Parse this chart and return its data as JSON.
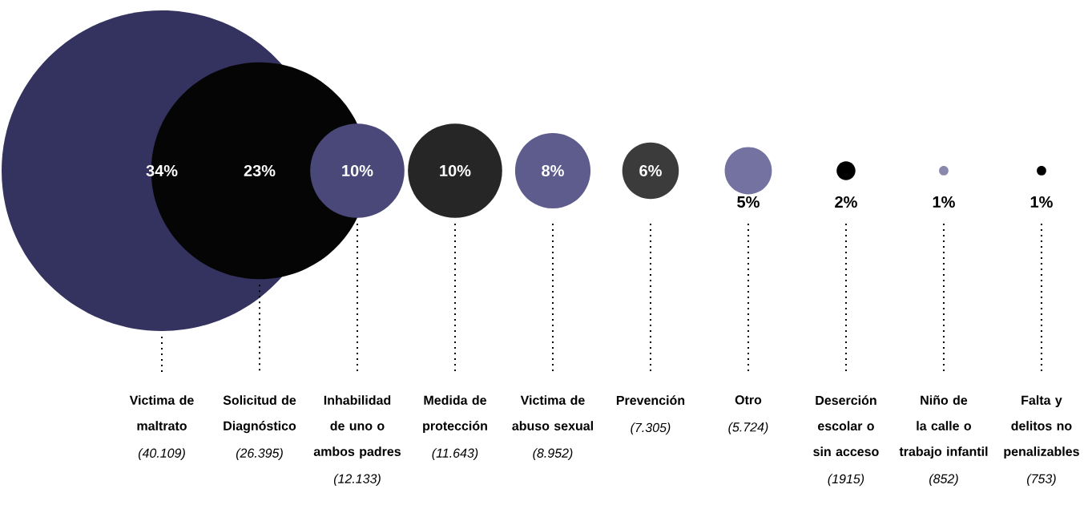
{
  "chart_data": {
    "type": "other",
    "categories": [
      "Victima de maltrato",
      "Solicitud de Diagnóstico",
      "Inhabilidad de uno o ambos padres",
      "Medida de protección",
      "Victima de abuso sexual",
      "Prevención",
      "Otro",
      "Deserción escolar o sin acceso",
      "Niño de la calle o trabajo infantil",
      "Falta y delitos no penalizables"
    ],
    "values": [
      34,
      23,
      10,
      10,
      8,
      6,
      5,
      2,
      1,
      1
    ],
    "value_labels": [
      "34%",
      "23%",
      "10%",
      "10%",
      "8%",
      "6%",
      "5%",
      "2%",
      "1%",
      "1%"
    ],
    "colors": [
      "#34325f",
      "#050505",
      "#4a4879",
      "#262626",
      "#5e5c8c",
      "#3b3b3b",
      "#7472a0",
      "#000000",
      "#8a89ad",
      "#000000"
    ],
    "annotations": [
      "(40.109)",
      "(26.395)",
      "(12.133)",
      "(11.643)",
      "(8.952)",
      "(7.305)",
      "(5.724)",
      "(1915)",
      "(852)",
      "(753)"
    ]
  }
}
